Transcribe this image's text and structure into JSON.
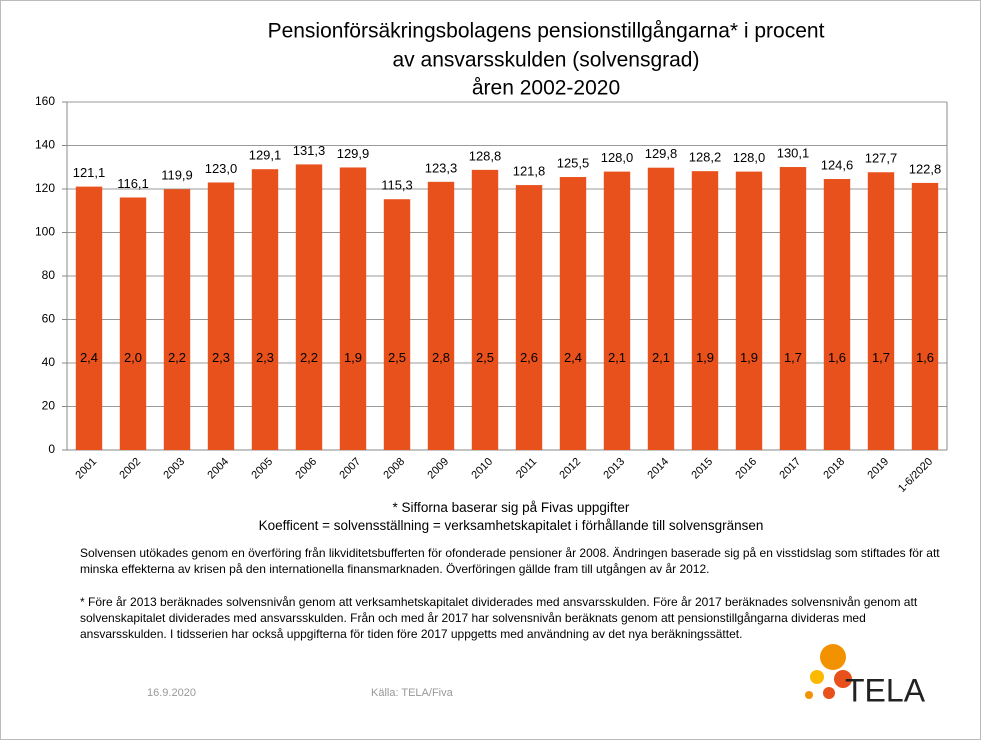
{
  "chart_data": {
    "type": "bar",
    "title": [
      "Pensionförsäkringsbolagens pensionstillgångarna* i procent",
      "av ansvarsskulden (solvensgrad)",
      "åren 2002-2020"
    ],
    "categories": [
      "2001",
      "2002",
      "2003",
      "2004",
      "2005",
      "2006",
      "2007",
      "2008",
      "2009",
      "2010",
      "2011",
      "2012",
      "2013",
      "2014",
      "2015",
      "2016",
      "2017",
      "2018",
      "2019",
      "1-6/2020"
    ],
    "values": [
      121.1,
      116.1,
      119.9,
      123.0,
      129.1,
      131.3,
      129.9,
      115.3,
      123.3,
      128.8,
      121.8,
      125.5,
      128.0,
      129.8,
      128.2,
      128.0,
      130.1,
      124.6,
      127.7,
      122.8
    ],
    "value_labels": [
      "121,1",
      "116,1",
      "119,9",
      "123,0",
      "129,1",
      "131,3",
      "129,9",
      "115,3",
      "123,3",
      "128,8",
      "121,8",
      "125,5",
      "128,0",
      "129,8",
      "128,2",
      "128,0",
      "130,1",
      "124,6",
      "127,7",
      "122,8"
    ],
    "coefficients": [
      2.4,
      2.0,
      2.2,
      2.3,
      2.3,
      2.2,
      1.9,
      2.5,
      2.8,
      2.5,
      2.6,
      2.4,
      2.1,
      2.1,
      1.9,
      1.9,
      1.7,
      1.6,
      1.7,
      1.6
    ],
    "coefficient_labels": [
      "2,4",
      "2,0",
      "2,2",
      "2,3",
      "2,3",
      "2,2",
      "1,9",
      "2,5",
      "2,8",
      "2,5",
      "2,6",
      "2,4",
      "2,1",
      "2,1",
      "1,9",
      "1,9",
      "1,7",
      "1,6",
      "1,7",
      "1,6"
    ],
    "color": "#e8501c",
    "ylim": [
      0,
      160
    ],
    "yticks": [
      0,
      20,
      40,
      60,
      80,
      100,
      120,
      140,
      160
    ],
    "grid": true
  },
  "notes": [
    "* Sifforna baserar sig på Fivas uppgifter",
    "Koefficent = solvensställning = verksamhetskapitalet i förhållande till solvensgränsen"
  ],
  "paragraphs": [
    "Solvensen utökades genom en överföring från likviditetsbufferten för ofonderade pensioner år 2008. Ändringen baserade sig på en visstidslag som stiftades för att minska effekterna av krisen på den internationella finansmarknaden. Överföringen gällde fram till utgången av år 2012.",
    "* Före år 2013 beräknades solvensnivån genom att verksamhetskapitalet dividerades med ansvarsskulden. Före år 2017 beräknades solvensnivån genom att solvenskapitalet dividerades med ansvarsskulden. Från och med år 2017 har solvensnivån beräknats genom att pensionstillgångarna divideras med ansvarsskulden. I tidsserien har också uppgifterna för tiden före 2017 uppgetts med användning av det nya beräkningssättet."
  ],
  "footer": {
    "date": "16.9.2020",
    "source": "Källa: TELA/Fiva",
    "logo": "TELA"
  }
}
